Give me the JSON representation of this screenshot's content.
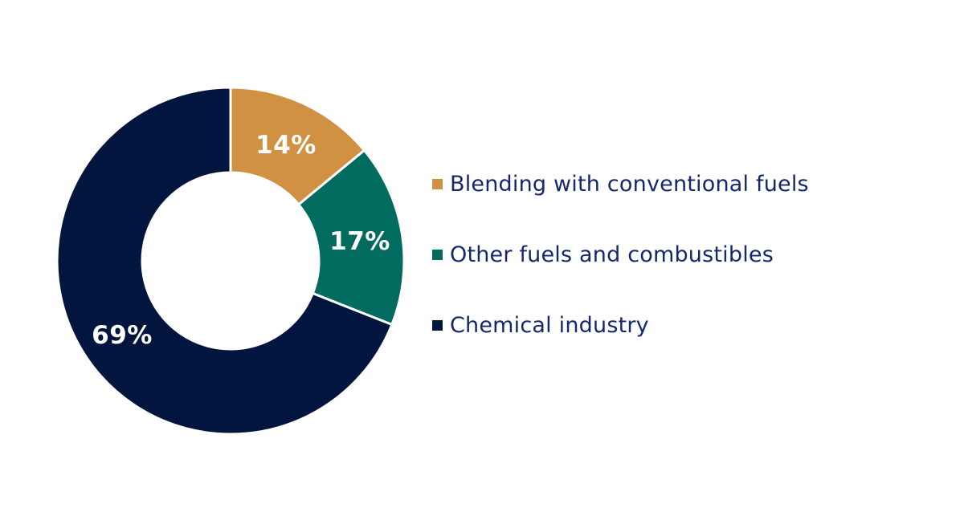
{
  "chart_data": {
    "type": "pie",
    "variant": "donut",
    "title": "",
    "categories": [
      "Blending with conventional fuels",
      "Other fuels and combustibles",
      "Chemical industry"
    ],
    "values": [
      14,
      17,
      69
    ],
    "labels": [
      "14%",
      "17%",
      "69%"
    ],
    "colors": [
      "#d09143",
      "#026b60",
      "#02153f"
    ],
    "legend_position": "right",
    "start_angle_deg": 0,
    "direction": "clockwise"
  },
  "legend": {
    "items": [
      {
        "label": "Blending with conventional fuels",
        "color": "#d09143"
      },
      {
        "label": "Other fuels and combustibles",
        "color": "#026b60"
      },
      {
        "label": "Chemical industry",
        "color": "#02153f"
      }
    ]
  }
}
